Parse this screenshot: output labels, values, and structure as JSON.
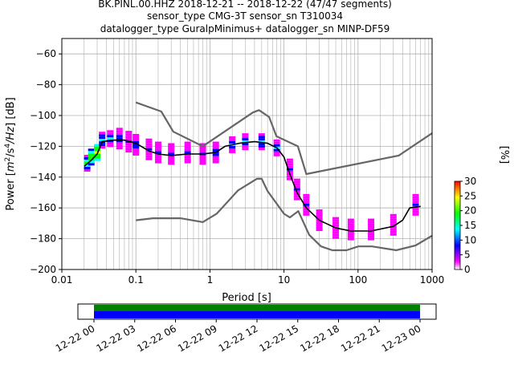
{
  "title_lines": [
    "BK.PINL.00.HHZ   2018-12-21 -- 2018-12-22  (47/47 segments)",
    "sensor_type CMG-3T sensor_sn T310034",
    "datalogger_type GuralpMinimus+ datalogger_sn MINP-DF59"
  ],
  "chart_data": [
    {
      "type": "heatmap",
      "xlabel": "Period [s]",
      "ylabel": "Power [$m^2/s^4/Hz$] [dB]",
      "x_scale": "log",
      "xlim": [
        0.01,
        1000
      ],
      "ylim": [
        -200,
        -50
      ],
      "x_ticks": [
        0.01,
        0.1,
        1,
        10,
        100,
        1000
      ],
      "x_tick_labels": [
        "0.01",
        "0.1",
        "1",
        "10",
        "100",
        "1000"
      ],
      "y_ticks": [
        -200,
        -180,
        -160,
        -140,
        -120,
        -100,
        -80,
        -60
      ],
      "y_tick_labels": [
        "−200",
        "−180",
        "−160",
        "−140",
        "−120",
        "−100",
        "−80",
        "−60"
      ],
      "grid": true,
      "colorbar": {
        "label": "[%]",
        "range": [
          0,
          30
        ],
        "ticks": [
          0,
          5,
          10,
          15,
          20,
          25,
          30
        ],
        "colors": [
          "#ffffff",
          "#ff00ff",
          "#0000ff",
          "#00ffff",
          "#00ff00",
          "#ffff00",
          "#ff0000"
        ]
      },
      "series": [
        {
          "role": "high_noise_model",
          "color": "#666666",
          "x": [
            0.1,
            0.22,
            0.32,
            0.8,
            3.8,
            4.6,
            6.3,
            7.9,
            15.4,
            20,
            354.8,
            1000
          ],
          "y": [
            -91.5,
            -97.4,
            -110.5,
            -120.0,
            -98.0,
            -96.5,
            -101.0,
            -113.5,
            -120.0,
            -138.0,
            -126.0,
            -111.5
          ]
        },
        {
          "role": "low_noise_model",
          "color": "#666666",
          "x": [
            0.1,
            0.17,
            0.4,
            0.8,
            1.24,
            2.4,
            4.3,
            5.0,
            6.0,
            10,
            12,
            15.6,
            21.9,
            31.6,
            45,
            70,
            101,
            154,
            328,
            600,
            1000
          ],
          "y": [
            -168.0,
            -166.7,
            -166.7,
            -169.2,
            -163.7,
            -148.6,
            -141.1,
            -141.1,
            -149.0,
            -163.8,
            -166.2,
            -162.1,
            -177.5,
            -185.0,
            -187.5,
            -187.5,
            -185.0,
            -185.0,
            -187.5,
            -184.4,
            -178.0
          ]
        },
        {
          "role": "mode",
          "color": "#000000",
          "x": [
            0.02,
            0.025,
            0.03,
            0.035,
            0.05,
            0.07,
            0.1,
            0.15,
            0.2,
            0.3,
            0.5,
            0.8,
            1.2,
            1.6,
            2.5,
            4,
            6,
            8,
            10,
            12,
            15,
            20,
            30,
            50,
            80,
            150,
            300,
            400,
            500,
            700
          ],
          "y": [
            -133,
            -129,
            -125,
            -117,
            -116,
            -116,
            -118,
            -123,
            -125,
            -126,
            -125,
            -125,
            -124,
            -120,
            -118,
            -117,
            -118,
            -121,
            -127,
            -138,
            -150,
            -160,
            -168,
            -173,
            -175,
            -175,
            -172,
            -168,
            -160,
            -159
          ]
        }
      ],
      "density": [
        {
          "x": 0.022,
          "y": -131,
          "v": 18
        },
        {
          "x": 0.025,
          "y": -127,
          "v": 22
        },
        {
          "x": 0.03,
          "y": -124,
          "v": 26
        },
        {
          "x": 0.035,
          "y": -116,
          "v": 16
        },
        {
          "x": 0.045,
          "y": -115,
          "v": 14
        },
        {
          "x": 0.06,
          "y": -115,
          "v": 12
        },
        {
          "x": 0.08,
          "y": -117,
          "v": 10
        },
        {
          "x": 0.1,
          "y": -119,
          "v": 12
        },
        {
          "x": 0.15,
          "y": -122,
          "v": 9
        },
        {
          "x": 0.2,
          "y": -124,
          "v": 9
        },
        {
          "x": 0.3,
          "y": -125,
          "v": 8
        },
        {
          "x": 0.5,
          "y": -124,
          "v": 8
        },
        {
          "x": 0.8,
          "y": -125,
          "v": 11
        },
        {
          "x": 1.2,
          "y": -124,
          "v": 12
        },
        {
          "x": 2,
          "y": -119,
          "v": 13
        },
        {
          "x": 3,
          "y": -117,
          "v": 15
        },
        {
          "x": 5,
          "y": -117,
          "v": 16
        },
        {
          "x": 8,
          "y": -121,
          "v": 14
        },
        {
          "x": 12,
          "y": -135,
          "v": 10
        },
        {
          "x": 15,
          "y": -148,
          "v": 9
        },
        {
          "x": 20,
          "y": -158,
          "v": 8
        },
        {
          "x": 30,
          "y": -168,
          "v": 6
        },
        {
          "x": 50,
          "y": -173,
          "v": 5
        },
        {
          "x": 80,
          "y": -174,
          "v": 5
        },
        {
          "x": 150,
          "y": -174,
          "v": 5
        },
        {
          "x": 300,
          "y": -171,
          "v": 7
        },
        {
          "x": 600,
          "y": -158,
          "v": 9
        }
      ]
    },
    {
      "type": "timeline",
      "x_tick_labels": [
        "12-22 00",
        "12-22 03",
        "12-22 06",
        "12-22 09",
        "12-22 12",
        "12-22 15",
        "12-22 18",
        "12-22 21",
        "12-23 00"
      ],
      "coverage_colors": [
        "#008000",
        "#0000ff"
      ]
    }
  ]
}
